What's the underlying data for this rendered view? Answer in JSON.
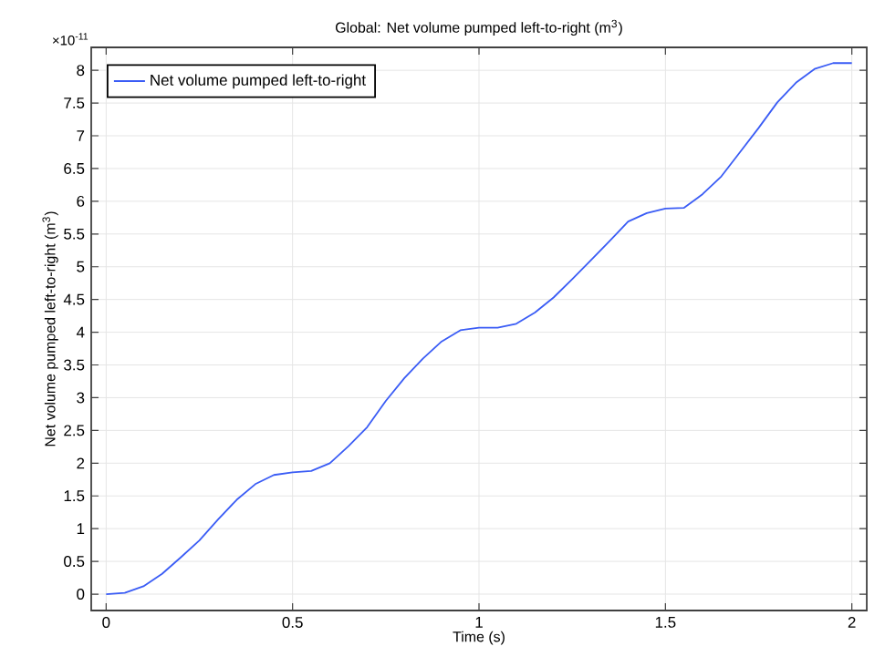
{
  "chart_data": {
    "type": "line",
    "title": "Global: Net volume pumped left-to-right (m$^{3}$)",
    "xlabel": "Time (s)",
    "ylabel": "Net volume pumped left-to-right (m$^{3}$)",
    "annotations": [
      "×10$^{-11}$"
    ],
    "x": [
      0,
      0.05,
      0.1,
      0.15,
      0.2,
      0.25,
      0.3,
      0.35,
      0.4,
      0.45,
      0.5,
      0.55,
      0.6,
      0.65,
      0.7,
      0.75,
      0.8,
      0.85,
      0.9,
      0.95,
      1.0,
      1.05,
      1.1,
      1.15,
      1.2,
      1.25,
      1.3,
      1.35,
      1.4,
      1.45,
      1.5,
      1.55,
      1.6,
      1.65,
      1.7,
      1.75,
      1.8,
      1.85,
      1.9,
      1.95,
      2.0
    ],
    "series": [
      {
        "name": "Net volume pumped left-to-right",
        "color": "#3a5cf5",
        "values": [
          0,
          0.02,
          0.12,
          0.31,
          0.56,
          0.82,
          1.14,
          1.44,
          1.68,
          1.82,
          1.86,
          1.88,
          2.0,
          2.26,
          2.55,
          2.95,
          3.3,
          3.6,
          3.86,
          4.03,
          4.07,
          4.07,
          4.13,
          4.3,
          4.53,
          4.81,
          5.1,
          5.39,
          5.69,
          5.82,
          5.89,
          5.9,
          6.11,
          6.38,
          6.75,
          7.12,
          7.51,
          7.81,
          8.02,
          8.11,
          8.11
        ]
      }
    ],
    "xlim": [
      -0.04,
      2.04
    ],
    "ylim": [
      -0.25,
      8.35
    ],
    "xticks": [
      0,
      0.5,
      1,
      1.5,
      2
    ],
    "yticks": [
      0,
      0.5,
      1,
      1.5,
      2,
      2.5,
      3,
      3.5,
      4,
      4.5,
      5,
      5.5,
      6,
      6.5,
      7,
      7.5,
      8
    ],
    "grid": true,
    "legend": "top left",
    "marker": "none",
    "line_style": "solid"
  }
}
